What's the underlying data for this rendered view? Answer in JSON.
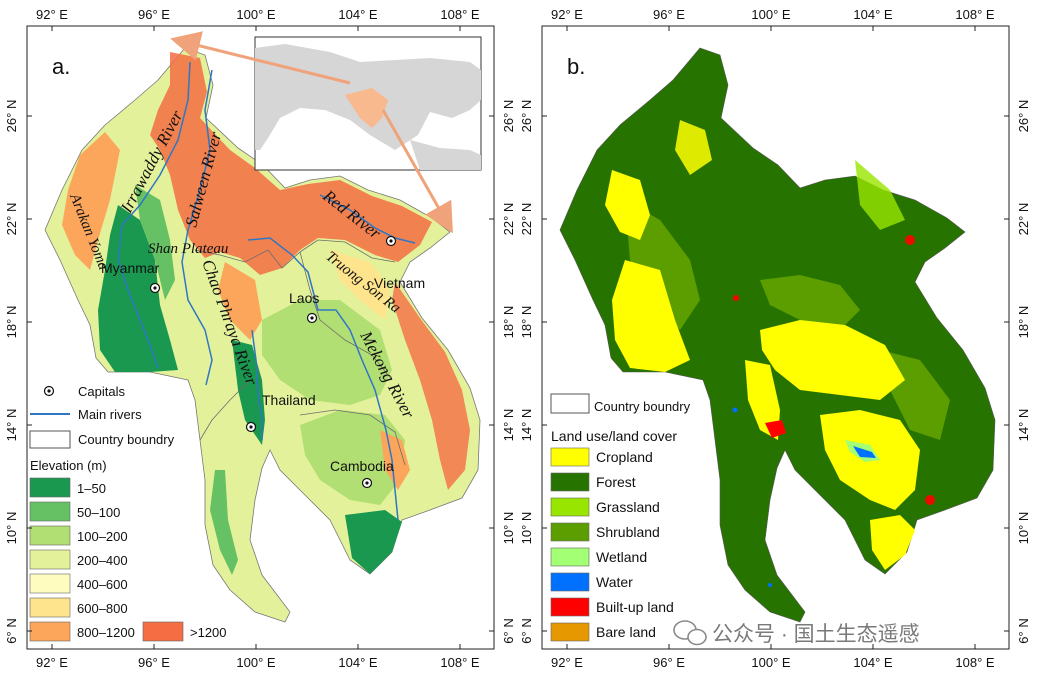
{
  "panels": {
    "a": {
      "label": "a.",
      "x_ticks": [
        "92° E",
        "96° E",
        "100° E",
        "104° E",
        "108° E"
      ],
      "y_ticks": [
        "26° N",
        "22° N",
        "18° N",
        "14° N",
        "10° N",
        "6° N"
      ],
      "rivers": {
        "irrawaddy": "Irrawaddy River",
        "salween": "Salween River",
        "chao_phraya": "Chao Phraya River",
        "mekong": "Mekong River",
        "red": "Red River"
      },
      "places": {
        "arakan": "Arakan Yoma",
        "shan": "Shan Plateau",
        "truong_son": "Truong Son Ra",
        "myanmar": "Myanmar",
        "laos": "Laos",
        "vietnam": "Vietnam",
        "thailand": "Thailand",
        "cambodia": "Cambodia"
      },
      "legend": {
        "capitals": "Capitals",
        "main_rivers": "Main rivers",
        "country": "Country boundry",
        "elev_title": "Elevation (m)",
        "classes": [
          {
            "label": "1–50",
            "color": "#1a9850"
          },
          {
            "label": "50–100",
            "color": "#66c164"
          },
          {
            "label": "100–200",
            "color": "#b2df74"
          },
          {
            "label": "200–400",
            "color": "#e3f29a"
          },
          {
            "label": "400–600",
            "color": "#fffcc0"
          },
          {
            "label": "600–800",
            "color": "#fee48c"
          },
          {
            "label": "800–1200",
            "color": "#fca65c"
          },
          {
            "label": ">1200",
            "color": "#f46d43"
          }
        ]
      }
    },
    "b": {
      "label": "b.",
      "x_ticks": [
        "92° E",
        "96° E",
        "100° E",
        "104° E",
        "108° E"
      ],
      "y_ticks": [
        "26° N",
        "22° N",
        "18° N",
        "14° N",
        "10° N",
        "6° N"
      ],
      "legend": {
        "country": "Country boundry",
        "title": "Land use/land cover",
        "classes": [
          {
            "label": "Cropland",
            "color": "#ffff00"
          },
          {
            "label": "Forest",
            "color": "#267300"
          },
          {
            "label": "Grassland",
            "color": "#98e600"
          },
          {
            "label": "Shrubland",
            "color": "#5c9e00"
          },
          {
            "label": "Wetland",
            "color": "#a3ff73"
          },
          {
            "label": "Water",
            "color": "#0070ff"
          },
          {
            "label": "Built-up land",
            "color": "#ff0000"
          },
          {
            "label": "Bare land",
            "color": "#e69800"
          }
        ]
      }
    }
  },
  "watermark": "公众号 · 国土生态遥感"
}
